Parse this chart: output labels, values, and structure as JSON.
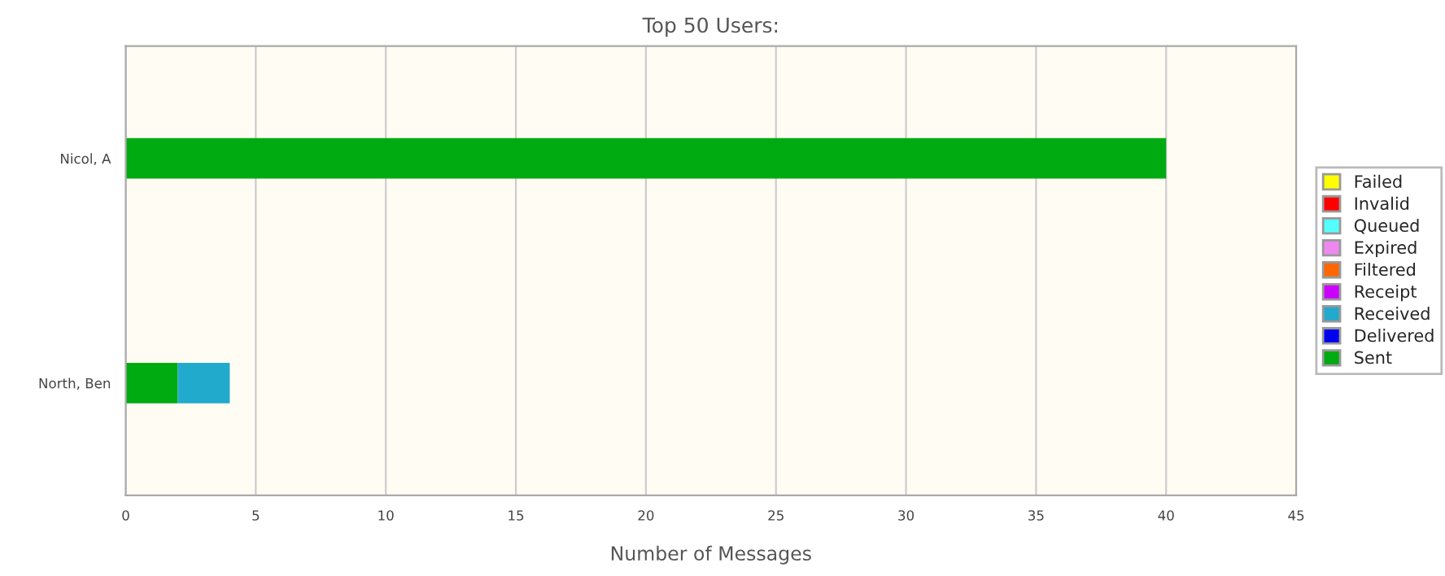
{
  "chart_data": {
    "type": "bar",
    "orientation": "horizontal",
    "stacked": true,
    "title": "Top 50 Users:",
    "xlabel": "Number of Messages",
    "categories": [
      "Nicol, A",
      "North, Ben"
    ],
    "series": [
      {
        "name": "Sent",
        "color": "#00aa11",
        "values": [
          40,
          2
        ]
      },
      {
        "name": "Delivered",
        "color": "#0000ee",
        "values": [
          null,
          null
        ]
      },
      {
        "name": "Received",
        "color": "#22aacc",
        "values": [
          null,
          2
        ]
      },
      {
        "name": "Receipt",
        "color": "#cc00ff",
        "values": [
          null,
          null
        ]
      },
      {
        "name": "Filtered",
        "color": "#ff6600",
        "values": [
          null,
          null
        ]
      },
      {
        "name": "Expired",
        "color": "#ee88ee",
        "values": [
          null,
          null
        ]
      },
      {
        "name": "Queued",
        "color": "#55ffff",
        "values": [
          null,
          null
        ]
      },
      {
        "name": "Invalid",
        "color": "#ff0000",
        "values": [
          null,
          null
        ]
      },
      {
        "name": "Failed",
        "color": "#ffff00",
        "values": [
          null,
          null
        ]
      }
    ],
    "xlim": [
      0,
      45
    ],
    "xticks": [
      0,
      5,
      10,
      15,
      20,
      25,
      30,
      35,
      40,
      45
    ],
    "grid": true,
    "legend": "right"
  }
}
